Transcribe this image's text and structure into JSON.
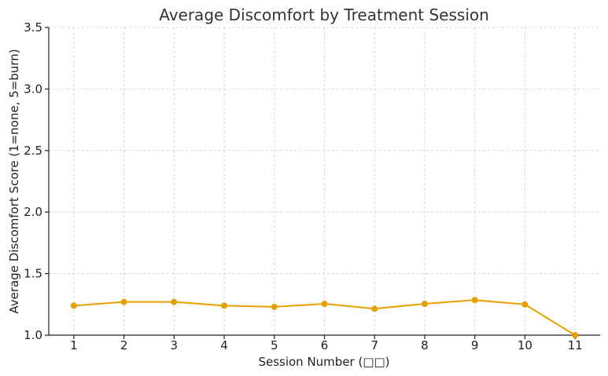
{
  "chart_data": {
    "type": "line",
    "title": "Average Discomfort by Treatment Session",
    "xlabel": "Session Number (□□)",
    "ylabel": "Average Discomfort Score (1=none, 5=burn)",
    "x": [
      1,
      2,
      3,
      4,
      5,
      6,
      7,
      8,
      9,
      10,
      11
    ],
    "series": [
      {
        "values": [
          1.24,
          1.27,
          1.27,
          1.24,
          1.23,
          1.255,
          1.215,
          1.255,
          1.285,
          1.25,
          1.0
        ]
      }
    ],
    "xlim": [
      0.5,
      11.5
    ],
    "ylim": [
      1.0,
      3.5
    ],
    "yticks": [
      "1.0",
      "1.5",
      "2.0",
      "2.5",
      "3.0",
      "3.5"
    ],
    "xticks": [
      "1",
      "2",
      "3",
      "4",
      "5",
      "6",
      "7",
      "8",
      "9",
      "10",
      "11"
    ],
    "grid": true,
    "line_color": "#e69f00",
    "grid_color": "#cccccc"
  }
}
